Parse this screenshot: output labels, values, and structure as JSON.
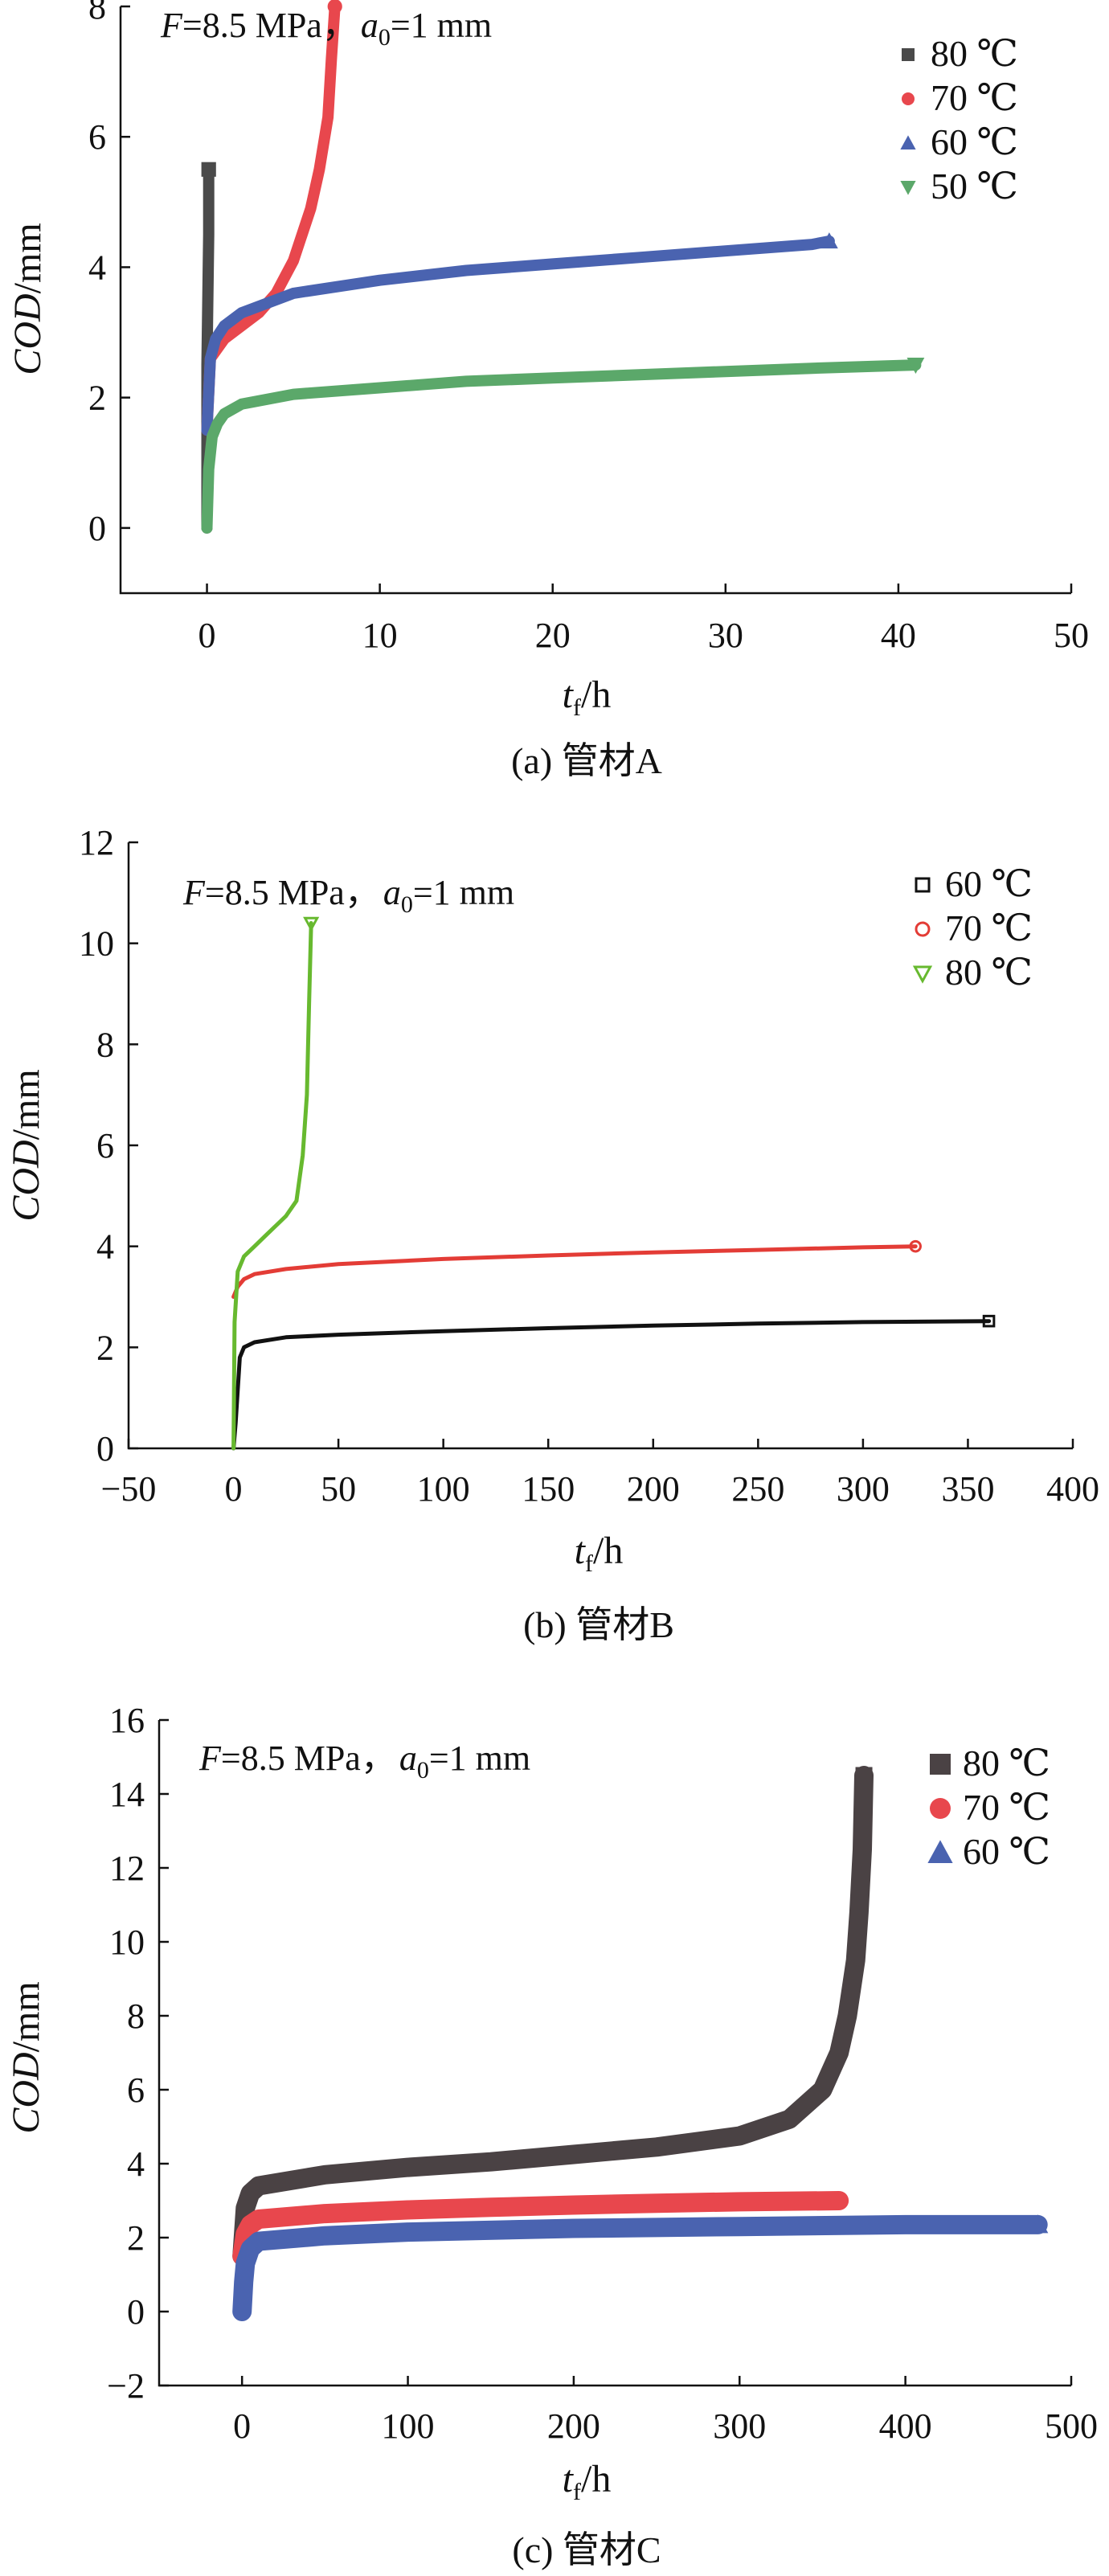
{
  "chart_data": [
    {
      "type": "line",
      "annotation": {
        "F": "F",
        "F_eq": "=8.5 MPa，",
        "a": "a",
        "a_sub": "0",
        "a_eq": "=1 mm"
      },
      "xlabel": {
        "main": "t",
        "sub": "f",
        "unit": "/h"
      },
      "ylabel": {
        "main": "COD",
        "unit": "/mm"
      },
      "caption": "(a) 管材A",
      "xlim": [
        -5,
        50
      ],
      "ylim": [
        -1,
        8
      ],
      "xticks": [
        0,
        10,
        20,
        30,
        40,
        50
      ],
      "yticks": [
        0,
        2,
        4,
        6,
        8
      ],
      "series": [
        {
          "name": "80 ℃",
          "color": "#4a4a4a",
          "marker": "square",
          "x": [
            0,
            0,
            0.05,
            0.1,
            0.1
          ],
          "y": [
            0,
            2.5,
            3.5,
            4.5,
            5.5
          ]
        },
        {
          "name": "70 ℃",
          "color": "#e8474d",
          "marker": "circle",
          "x": [
            0,
            0.2,
            1,
            2,
            3,
            4,
            5,
            6,
            6.5,
            7,
            7.2,
            7.4
          ],
          "y": [
            1.5,
            2.6,
            2.9,
            3.1,
            3.3,
            3.6,
            4.1,
            4.9,
            5.5,
            6.3,
            7.2,
            8.0
          ]
        },
        {
          "name": "60 ℃",
          "color": "#4a63b0",
          "marker": "triangle-up",
          "x": [
            0,
            0.2,
            0.5,
            1,
            2,
            5,
            10,
            15,
            20,
            25,
            30,
            35,
            36
          ],
          "y": [
            1.5,
            2.6,
            2.9,
            3.1,
            3.3,
            3.6,
            3.8,
            3.95,
            4.05,
            4.15,
            4.25,
            4.35,
            4.4
          ]
        },
        {
          "name": "50 ℃",
          "color": "#5ba86a",
          "marker": "triangle-down",
          "x": [
            0,
            0.1,
            0.3,
            0.6,
            1,
            2,
            5,
            10,
            15,
            20,
            25,
            30,
            35,
            41
          ],
          "y": [
            0,
            0.9,
            1.4,
            1.6,
            1.75,
            1.9,
            2.05,
            2.15,
            2.25,
            2.3,
            2.35,
            2.4,
            2.45,
            2.5
          ]
        }
      ]
    },
    {
      "type": "line",
      "annotation": {
        "F": "F",
        "F_eq": "=8.5 MPa，",
        "a": "a",
        "a_sub": "0",
        "a_eq": "=1 mm"
      },
      "xlabel": {
        "main": "t",
        "sub": "f",
        "unit": "/h"
      },
      "ylabel": {
        "main": "COD",
        "unit": "/mm"
      },
      "caption": "(b) 管材B",
      "xlim": [
        -50,
        400
      ],
      "ylim": [
        0,
        12
      ],
      "xticks": [
        -50,
        0,
        50,
        100,
        150,
        200,
        250,
        300,
        350,
        400
      ],
      "yticks": [
        0,
        2,
        4,
        6,
        8,
        10,
        12
      ],
      "series": [
        {
          "name": "60 ℃",
          "color": "#111111",
          "marker": "square-open",
          "x": [
            0,
            1,
            3,
            5,
            10,
            25,
            50,
            100,
            150,
            200,
            250,
            300,
            360
          ],
          "y": [
            0,
            0.5,
            1.8,
            2.0,
            2.1,
            2.2,
            2.25,
            2.32,
            2.38,
            2.43,
            2.47,
            2.5,
            2.52
          ]
        },
        {
          "name": "70 ℃",
          "color": "#e33c36",
          "marker": "circle-open",
          "x": [
            0,
            2,
            5,
            10,
            25,
            50,
            100,
            150,
            200,
            250,
            300,
            325
          ],
          "y": [
            3.0,
            3.2,
            3.35,
            3.45,
            3.55,
            3.65,
            3.75,
            3.82,
            3.88,
            3.93,
            3.98,
            4.0
          ]
        },
        {
          "name": "80 ℃",
          "color": "#67b92f",
          "marker": "triangle-open",
          "x": [
            0,
            0.5,
            2,
            5,
            10,
            15,
            20,
            25,
            30,
            33,
            35,
            36,
            37
          ],
          "y": [
            0,
            2.5,
            3.5,
            3.8,
            4.0,
            4.2,
            4.4,
            4.6,
            4.9,
            5.8,
            7.0,
            8.8,
            10.4
          ]
        }
      ]
    },
    {
      "type": "line",
      "annotation": {
        "F": "F",
        "F_eq": "=8.5 MPa，",
        "a": "a",
        "a_sub": "0",
        "a_eq": "=1 mm"
      },
      "xlabel": {
        "main": "t",
        "sub": "f",
        "unit": "/h"
      },
      "ylabel": {
        "main": "COD",
        "unit": "/mm"
      },
      "caption": "(c) 管材C",
      "xlim": [
        -50,
        500
      ],
      "ylim": [
        -2,
        16
      ],
      "xticks": [
        0,
        100,
        200,
        300,
        400,
        500
      ],
      "yticks": [
        -2,
        0,
        2,
        4,
        6,
        8,
        10,
        12,
        14,
        16
      ],
      "series": [
        {
          "name": "80 ℃",
          "color": "#4a4244",
          "marker": "square",
          "x": [
            0,
            2,
            5,
            10,
            50,
            100,
            150,
            200,
            250,
            300,
            330,
            350,
            360,
            365,
            370,
            372,
            374,
            375
          ],
          "y": [
            1.5,
            2.8,
            3.2,
            3.4,
            3.7,
            3.9,
            4.05,
            4.25,
            4.45,
            4.75,
            5.2,
            6.0,
            7.0,
            8.0,
            9.5,
            10.8,
            12.5,
            14.5
          ]
        },
        {
          "name": "70 ℃",
          "color": "#e8474d",
          "marker": "circle",
          "x": [
            0,
            2,
            5,
            10,
            50,
            100,
            150,
            200,
            250,
            300,
            360
          ],
          "y": [
            1.5,
            2.1,
            2.35,
            2.5,
            2.65,
            2.75,
            2.82,
            2.88,
            2.93,
            2.97,
            3.0
          ]
        },
        {
          "name": "60 ℃",
          "color": "#4a63b0",
          "marker": "triangle-up",
          "x": [
            0,
            1,
            2,
            5,
            10,
            50,
            100,
            200,
            300,
            400,
            480
          ],
          "y": [
            0,
            0.8,
            1.3,
            1.7,
            1.9,
            2.05,
            2.15,
            2.25,
            2.3,
            2.35,
            2.35
          ]
        }
      ]
    }
  ]
}
